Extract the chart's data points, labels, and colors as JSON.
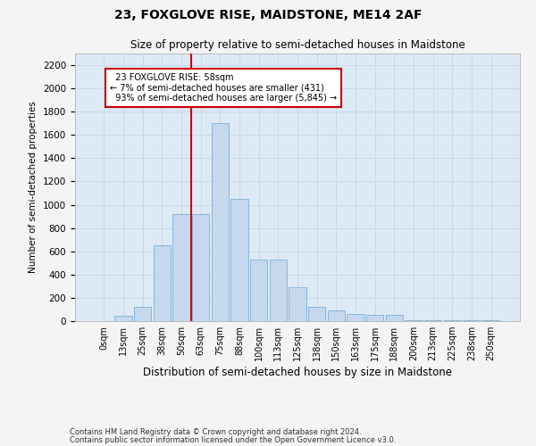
{
  "title1": "23, FOXGLOVE RISE, MAIDSTONE, ME14 2AF",
  "title2": "Size of property relative to semi-detached houses in Maidstone",
  "xlabel": "Distribution of semi-detached houses by size in Maidstone",
  "ylabel": "Number of semi-detached properties",
  "categories": [
    "0sqm",
    "13sqm",
    "25sqm",
    "38sqm",
    "50sqm",
    "63sqm",
    "75sqm",
    "88sqm",
    "100sqm",
    "113sqm",
    "125sqm",
    "138sqm",
    "150sqm",
    "163sqm",
    "175sqm",
    "188sqm",
    "200sqm",
    "213sqm",
    "225sqm",
    "238sqm",
    "250sqm"
  ],
  "bar_values": [
    0,
    45,
    120,
    650,
    920,
    920,
    1700,
    1050,
    530,
    530,
    290,
    120,
    90,
    65,
    55,
    50,
    10,
    5,
    5,
    5,
    5
  ],
  "bar_color": "#c5d8ee",
  "bar_edge_color": "#7aafd4",
  "grid_color": "#c8d8e8",
  "background_color": "#ddeaf6",
  "marker_label": "23 FOXGLOVE RISE: 58sqm",
  "smaller_pct": "7%",
  "smaller_count": "431",
  "larger_pct": "93%",
  "larger_count": "5,845",
  "annotation_box_color": "#ffffff",
  "annotation_box_edge": "#cc0000",
  "marker_line_color": "#cc0000",
  "ylim": [
    0,
    2300
  ],
  "yticks": [
    0,
    200,
    400,
    600,
    800,
    1000,
    1200,
    1400,
    1600,
    1800,
    2000,
    2200
  ],
  "footer1": "Contains HM Land Registry data © Crown copyright and database right 2024.",
  "footer2": "Contains public sector information licensed under the Open Government Licence v3.0.",
  "fig_width": 6.0,
  "fig_height": 5.0,
  "fig_dpi": 100
}
